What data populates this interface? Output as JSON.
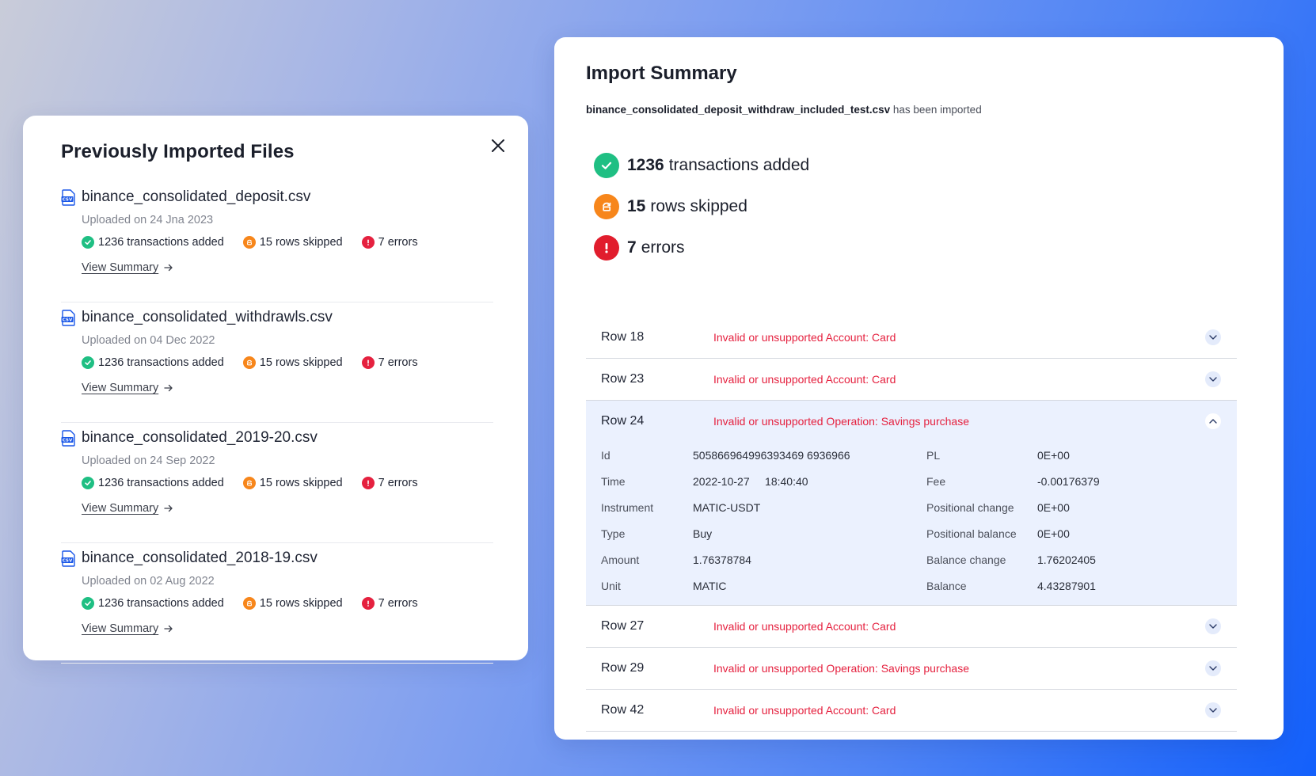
{
  "left": {
    "title": "Previously Imported Files",
    "close_icon": "close-icon",
    "view_summary_label": "View Summary",
    "files": [
      {
        "name": "binance_consolidated_deposit.csv",
        "date": "Uploaded on 24 Jna 2023",
        "added": "1236 transactions added",
        "skipped": "15 rows skipped",
        "errors": "7 errors"
      },
      {
        "name": "binance_consolidated_withdrawls.csv",
        "date": "Uploaded on 04 Dec 2022",
        "added": "1236 transactions added",
        "skipped": "15 rows skipped",
        "errors": "7 errors"
      },
      {
        "name": "binance_consolidated_2019-20.csv",
        "date": "Uploaded on 24 Sep 2022",
        "added": "1236 transactions added",
        "skipped": "15 rows skipped",
        "errors": "7 errors"
      },
      {
        "name": "binance_consolidated_2018-19.csv",
        "date": "Uploaded on 02 Aug 2022",
        "added": "1236 transactions added",
        "skipped": "15 rows skipped",
        "errors": "7 errors"
      }
    ]
  },
  "right": {
    "title": "Import Summary",
    "file_name": "binance_consolidated_deposit_withdraw_included_test.csv",
    "imported_suffix": "has been imported",
    "stats": {
      "added_num": "1236",
      "added_label": "transactions added",
      "skipped_num": "15",
      "skipped_label": "rows skipped",
      "errors_num": "7",
      "errors_label": "errors"
    },
    "rows": [
      {
        "label": "Row 18",
        "error": "Invalid or unsupported Account: Card"
      },
      {
        "label": "Row 23",
        "error": "Invalid or unsupported Account: Card"
      },
      {
        "label": "Row 24",
        "error": "Invalid or unsupported Operation: Savings purchase"
      },
      {
        "label": "Row 27",
        "error": "Invalid or unsupported Account: Card"
      },
      {
        "label": "Row 29",
        "error": "Invalid or unsupported Operation: Savings purchase"
      },
      {
        "label": "Row 42",
        "error": "Invalid or unsupported Account: Card"
      }
    ],
    "expanded_details": {
      "left": [
        {
          "key": "Id",
          "value": "505866964996393469 6936966"
        },
        {
          "key": "Time",
          "value": "2022-10-27     18:40:40"
        },
        {
          "key": "Instrument",
          "value": "MATIC-USDT"
        },
        {
          "key": "Type",
          "value": "Buy"
        },
        {
          "key": "Amount",
          "value": "1.76378784"
        },
        {
          "key": "Unit",
          "value": "MATIC"
        }
      ],
      "right": [
        {
          "key": "PL",
          "value": "0E+00"
        },
        {
          "key": "Fee",
          "value": "-0.00176379"
        },
        {
          "key": "Positional change",
          "value": "0E+00"
        },
        {
          "key": "Positional balance",
          "value": "0E+00"
        },
        {
          "key": "Balance change",
          "value": "1.76202405"
        },
        {
          "key": "Balance",
          "value": "4.43287901"
        }
      ]
    }
  },
  "colors": {
    "success": "#1fbf83",
    "warning": "#f7861b",
    "error": "#e5213f",
    "error_text": "#e5213f",
    "expanded_bg": "#ebf1fe",
    "accent_blue": "#1360fb"
  },
  "icons": [
    "csv-file-icon",
    "check-circle-icon",
    "skip-circle-icon",
    "error-circle-icon",
    "arrow-right-icon",
    "chevron-down-icon",
    "chevron-up-icon",
    "close-icon"
  ]
}
